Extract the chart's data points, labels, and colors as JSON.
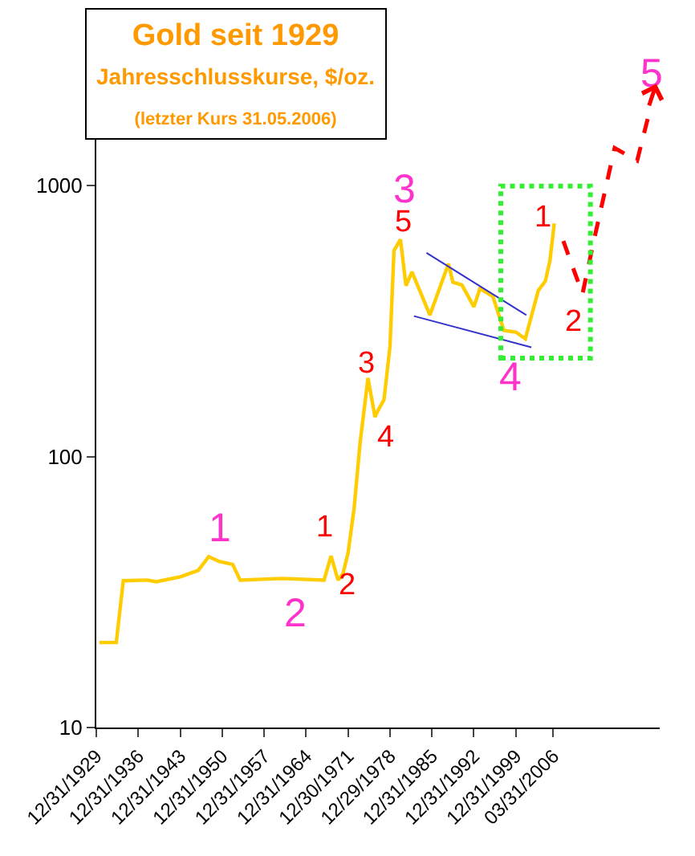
{
  "chart_data": {
    "type": "line",
    "title": "Gold seit 1929",
    "subtitle": "Jahresschlusskurse, $/oz.",
    "annotations": [
      "(letzter Kurs 31.05.2006)",
      "1",
      "2",
      "3",
      "4",
      "5",
      "1",
      "2",
      "3",
      "4",
      "5",
      "1",
      "2"
    ],
    "log": "y",
    "xlim": [
      "1929-12-31",
      "2024-01"
    ],
    "ylim": [
      10,
      4000
    ],
    "yticks": [
      10,
      100,
      1000
    ],
    "xticks": [
      {
        "value": "1929-12-31",
        "label": "12/31/1929"
      },
      {
        "value": "1936-12-31",
        "label": "12/31/1936"
      },
      {
        "value": "1943-12-31",
        "label": "12/31/1943"
      },
      {
        "value": "1950-12-31",
        "label": "12/31/1950"
      },
      {
        "value": "1957-12-31",
        "label": "12/31/1957"
      },
      {
        "value": "1964-12-31",
        "label": "12/31/1964"
      },
      {
        "value": "1971-12-30",
        "label": "12/30/1971"
      },
      {
        "value": "1978-12-29",
        "label": "12/29/1978"
      },
      {
        "value": "1985-12-31",
        "label": "12/31/1985"
      },
      {
        "value": "1992-12-31",
        "label": "12/31/1992"
      },
      {
        "value": "1999-12-31",
        "label": "12/31/1999"
      },
      {
        "value": "2006-03-31",
        "label": "03/31/2006"
      }
    ],
    "series": [
      {
        "color": "#ffcc00",
        "line_style": "solid",
        "x": [
          "1930-07",
          "1933-05",
          "1934-07",
          "1938-07",
          "1940-01",
          "1944-01",
          "1947-01",
          "1948-10",
          "1950-07",
          "1952-10",
          "1954-01",
          "1961-01",
          "1968-01",
          "1969-03",
          "1970-05",
          "1971-03",
          "1972-01",
          "1973-01",
          "1974-01",
          "1975-05",
          "1976-07",
          "1977-01",
          "1978-01",
          "1979-01",
          "1979-09",
          "1980-10",
          "1981-09",
          "1982-09",
          "1985-09",
          "1988-10",
          "1989-07",
          "1991-01",
          "1993-01",
          "1994-01",
          "1996-03",
          "1998-01",
          "2000-01",
          "2001-08",
          "2003-10",
          "2004-12",
          "2005-09",
          "2006-05-31"
        ],
        "values": [
          20.6,
          20.6,
          34.8,
          35,
          34.5,
          36,
          38,
          42.7,
          41,
          40,
          35,
          35.5,
          35,
          43,
          35,
          37,
          44,
          64,
          112,
          195,
          140,
          148,
          162,
          255,
          575,
          633,
          427,
          480,
          333,
          515,
          440,
          430,
          357,
          417,
          390,
          292,
          288,
          272,
          410,
          444,
          526,
          725
        ]
      },
      {
        "type": "line",
        "color": "#3333cc",
        "line_style": "solid",
        "x": [
          "1985-02",
          "2001-10"
        ],
        "values": [
          565,
          333
        ]
      },
      {
        "type": "line",
        "color": "#3333cc",
        "line_style": "solid",
        "x": [
          "1983-01",
          "2002-08"
        ],
        "values": [
          330,
          253
        ]
      }
    ]
  }
}
